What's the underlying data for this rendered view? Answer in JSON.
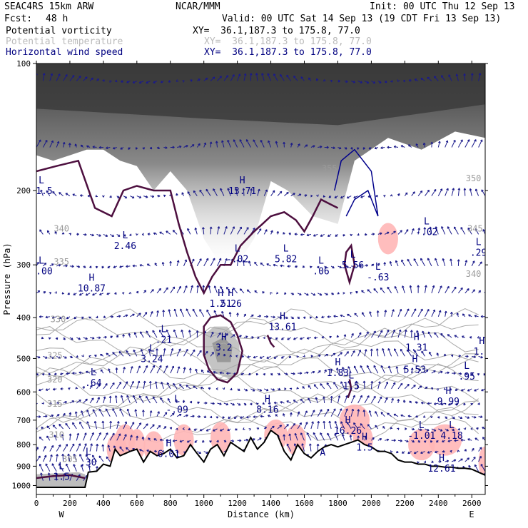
{
  "header": {
    "run": "SEAC4RS 15km ARW",
    "center": "NCAR/MMM",
    "init": "Init: 00 UTC Thu 12 Sep 13",
    "fcst_label": "Fcst:",
    "fcst_value": "48 h",
    "valid": "Valid: 00 UTC Sat 14 Sep 13 (19 CDT Fri 13 Sep 13)"
  },
  "legend": [
    {
      "name": "Potential vorticity",
      "xy": "XY=  36.1,187.3 to 175.8, 77.0",
      "color": "#000000"
    },
    {
      "name": "Potential temperature",
      "xy": "XY=  36.1,187.3 to 175.8, 77.0",
      "color": "#bbbbbb"
    },
    {
      "name": "Horizontal wind speed",
      "xy": "XY=  36.1,187.3 to 175.8, 77.0",
      "color": "#000080"
    }
  ],
  "chart_data": {
    "type": "heatmap",
    "title": "",
    "xlabel": "Distance (km)",
    "ylabel": "Pressure (hPa)",
    "xlim": [
      0,
      2680
    ],
    "ylim": [
      1050,
      100
    ],
    "y_scale": "log",
    "x_ticks": [
      0,
      200,
      400,
      600,
      800,
      1000,
      1200,
      1400,
      1600,
      1800,
      2000,
      2200,
      2400,
      2600
    ],
    "y_ticks": [
      100,
      200,
      300,
      400,
      500,
      600,
      700,
      800,
      900,
      1000
    ],
    "x_tick_labels": [
      "0",
      "200",
      "400",
      "600",
      "800",
      "1000",
      "1200",
      "1400",
      "1600",
      "1800",
      "2000",
      "2200",
      "2400",
      "2600"
    ],
    "y_tick_labels": [
      "100",
      "200",
      "300",
      "400",
      "500",
      "600",
      "700",
      "800",
      "900",
      "1000"
    ],
    "end_labels": {
      "west": "W",
      "east": "E"
    },
    "terrain": {
      "x": [
        0,
        290,
        310,
        360,
        400,
        440,
        470,
        500,
        530,
        560,
        600,
        640,
        680,
        720,
        760,
        800,
        840,
        880,
        920,
        960,
        1000,
        1040,
        1080,
        1120,
        1160,
        1200,
        1240,
        1280,
        1320,
        1360,
        1400,
        1440,
        1480,
        1520,
        1560,
        1600,
        1640,
        1680,
        1720,
        1760,
        1800,
        1840,
        1880,
        1920,
        1960,
        2000,
        2040,
        2080,
        2120,
        2160,
        2200,
        2240,
        2280,
        2320,
        2360,
        2400,
        2440,
        2480,
        2520,
        2560,
        2600,
        2640,
        2680
      ],
      "p": [
        1010,
        1010,
        930,
        925,
        890,
        900,
        820,
        850,
        840,
        830,
        820,
        880,
        830,
        850,
        840,
        820,
        860,
        850,
        800,
        840,
        880,
        820,
        800,
        850,
        790,
        810,
        830,
        770,
        820,
        790,
        740,
        760,
        830,
        870,
        800,
        840,
        860,
        830,
        810,
        800,
        810,
        800,
        790,
        780,
        800,
        810,
        830,
        830,
        840,
        870,
        880,
        880,
        890,
        890,
        900,
        900,
        905,
        905,
        910,
        910,
        915,
        930,
        945
      ]
    },
    "pv_labels": [
      {
        "type": "L",
        "value": "-1.5",
        "x": 30,
        "p": 200
      },
      {
        "type": "L",
        "value": "-.00",
        "x": 30,
        "p": 310
      },
      {
        "type": "H",
        "value": "10.87",
        "x": 330,
        "p": 340
      },
      {
        "type": "L",
        "value": "2.46",
        "x": 530,
        "p": 270
      },
      {
        "type": "L",
        "value": ".21",
        "x": 760,
        "p": 450
      },
      {
        "type": "L",
        "value": ".64",
        "x": 340,
        "p": 570
      },
      {
        "type": "L",
        "value": "3.24",
        "x": 690,
        "p": 500
      },
      {
        "type": "L",
        "value": "-.09",
        "x": 840,
        "p": 660
      },
      {
        "type": "H",
        "value": "3.2",
        "x": 1120,
        "p": 470
      },
      {
        "type": "L",
        "value": "-.02",
        "x": 1200,
        "p": 290
      },
      {
        "type": "H",
        "value": "13.71",
        "x": 1230,
        "p": 200
      },
      {
        "type": "H",
        "value": "1.51",
        "x": 1100,
        "p": 370
      },
      {
        "type": "H",
        "value": "2.26",
        "x": 1160,
        "p": 370
      },
      {
        "type": "H",
        "value": "13.61",
        "x": 1470,
        "p": 420
      },
      {
        "type": "L",
        "value": "5.82",
        "x": 1490,
        "p": 290
      },
      {
        "type": "H",
        "value": "8.16",
        "x": 1380,
        "p": 660
      },
      {
        "type": "L",
        "value": ".06",
        "x": 1700,
        "p": 310
      },
      {
        "type": "L",
        "value": "5.56",
        "x": 1890,
        "p": 300
      },
      {
        "type": "L",
        "value": "-.63",
        "x": 2040,
        "p": 320
      },
      {
        "type": "H",
        "value": "1.83",
        "x": 1800,
        "p": 540
      },
      {
        "type": "L",
        "value": "1.5",
        "x": 1880,
        "p": 580
      },
      {
        "type": "H",
        "value": "16.26",
        "x": 1860,
        "p": 740
      },
      {
        "type": "L",
        "value": "-.02",
        "x": 2330,
        "p": 250
      },
      {
        "type": "H",
        "value": "5.53",
        "x": 2260,
        "p": 530
      },
      {
        "type": "H",
        "value": "1.31",
        "x": 2270,
        "p": 470
      },
      {
        "type": "H",
        "value": "9.99",
        "x": 2460,
        "p": 630
      },
      {
        "type": "L",
        "value": "-1.01",
        "x": 2300,
        "p": 760
      },
      {
        "type": "L",
        "value": "4.18",
        "x": 2480,
        "p": 760
      },
      {
        "type": "H",
        "value": "12.61",
        "x": 2420,
        "p": 910
      },
      {
        "type": "L",
        "value": ".29",
        "x": 2640,
        "p": 280
      },
      {
        "type": "H",
        "value": "1.9",
        "x": 2660,
        "p": 480
      },
      {
        "type": "L",
        "value": ".95",
        "x": 2570,
        "p": 550
      },
      {
        "type": "H",
        "value": "6.01",
        "x": 790,
        "p": 840
      },
      {
        "type": "L",
        "value": ".30",
        "x": 310,
        "p": 880
      },
      {
        "type": "H",
        "value": "1.5",
        "x": 1960,
        "p": 810
      },
      {
        "type": "L",
        "value": "1.5",
        "x": 150,
        "p": 950
      }
    ],
    "theta_labels": [
      {
        "value": "340",
        "x": 150,
        "p": 250
      },
      {
        "value": "335",
        "x": 150,
        "p": 300
      },
      {
        "value": "330",
        "x": 130,
        "p": 410
      },
      {
        "value": "325",
        "x": 110,
        "p": 500
      },
      {
        "value": "320",
        "x": 110,
        "p": 570
      },
      {
        "value": "315",
        "x": 110,
        "p": 650
      },
      {
        "value": "310",
        "x": 120,
        "p": 770
      },
      {
        "value": "305",
        "x": 200,
        "p": 880
      },
      {
        "value": "355",
        "x": 1750,
        "p": 180
      },
      {
        "value": "350",
        "x": 2610,
        "p": 190
      },
      {
        "value": "345",
        "x": 2620,
        "p": 250
      },
      {
        "value": "340",
        "x": 2610,
        "p": 320
      }
    ],
    "wind_max_label": {
      "value": "A",
      "x": 1710,
      "p": 850
    }
  }
}
